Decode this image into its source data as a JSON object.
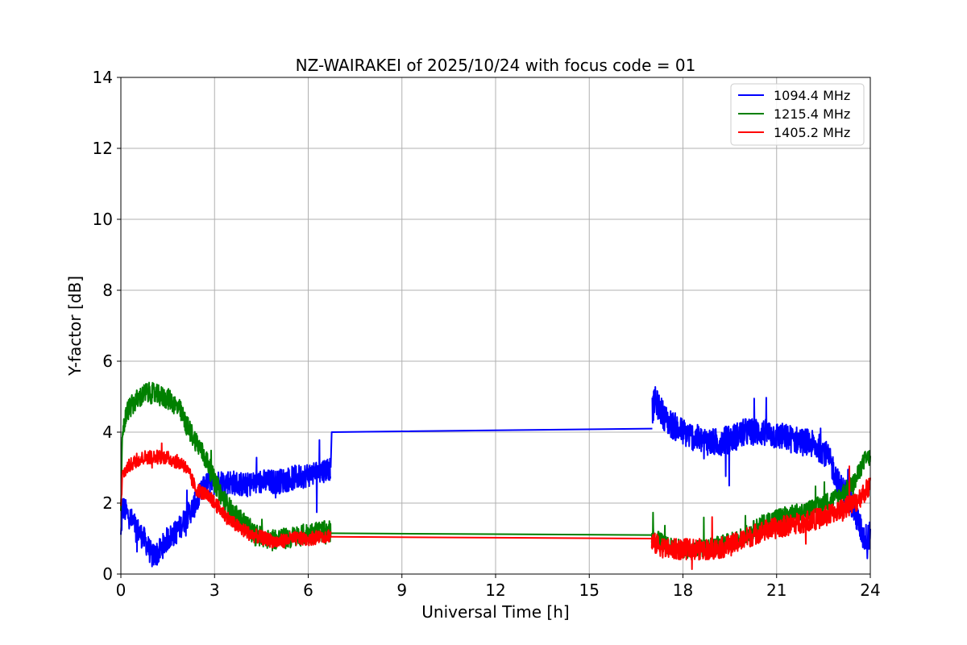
{
  "chart_data": {
    "type": "line",
    "title": "NZ-WAIRAKEI of 2025/10/24 with focus code = 01",
    "xlabel": "Universal Time [h]",
    "ylabel": "Y-factor [dB]",
    "xlim": [
      0,
      24
    ],
    "ylim": [
      0,
      14
    ],
    "xticks": [
      "0",
      "3",
      "6",
      "9",
      "12",
      "15",
      "18",
      "21",
      "24"
    ],
    "yticks": [
      "0",
      "2",
      "4",
      "6",
      "8",
      "10",
      "12",
      "14"
    ],
    "grid": true,
    "legend_position": "top-right",
    "series": [
      {
        "name": "1094.4 MHz",
        "color": "#0000ff",
        "segments": [
          {
            "x": [
              0.0,
              0.05,
              0.2,
              0.5,
              0.8,
              1.0,
              1.2,
              1.5,
              1.8,
              2.1,
              2.4,
              2.7,
              3.0,
              3.5,
              4.0,
              4.5,
              5.0,
              5.5,
              6.0,
              6.4,
              6.72
            ],
            "y": [
              1.0,
              1.9,
              1.7,
              1.3,
              0.9,
              0.5,
              0.6,
              1.0,
              1.2,
              1.6,
              2.0,
              2.5,
              2.6,
              2.6,
              2.5,
              2.6,
              2.6,
              2.7,
              2.8,
              2.9,
              3.0
            ],
            "noise": 0.35
          },
          {
            "x": [
              6.72,
              6.75,
              17.0,
              17.02
            ],
            "y": [
              3.0,
              4.0,
              4.1,
              4.1
            ],
            "noise": 0
          },
          {
            "x": [
              17.02,
              17.1,
              17.5,
              18.0,
              18.5,
              19.0,
              19.5,
              20.0,
              20.5,
              21.0,
              21.5,
              22.0,
              22.5,
              22.8,
              23.0,
              23.3,
              23.6,
              23.8,
              24.0
            ],
            "y": [
              4.6,
              4.9,
              4.3,
              4.0,
              3.8,
              3.7,
              3.8,
              4.0,
              4.0,
              3.9,
              3.8,
              3.7,
              3.5,
              3.0,
              2.5,
              2.2,
              1.5,
              1.0,
              1.1
            ],
            "noise": 0.4
          }
        ]
      },
      {
        "name": "1215.4 MHz",
        "color": "#008000",
        "segments": [
          {
            "x": [
              0.0,
              0.05,
              0.2,
              0.5,
              0.8,
              1.0,
              1.3,
              1.6,
              1.9,
              2.1,
              2.3,
              2.5,
              2.8,
              3.0,
              3.3,
              3.6,
              4.0,
              4.3,
              4.8,
              5.3,
              5.8,
              6.3,
              6.72
            ],
            "y": [
              1.5,
              4.0,
              4.6,
              4.9,
              5.1,
              5.1,
              5.0,
              4.9,
              4.6,
              4.2,
              3.9,
              3.6,
              3.1,
              2.6,
              2.1,
              1.7,
              1.4,
              1.1,
              1.0,
              1.0,
              1.1,
              1.2,
              1.2
            ],
            "noise": 0.3
          },
          {
            "x": [
              6.72,
              17.0
            ],
            "y": [
              1.15,
              1.1
            ],
            "noise": 0
          },
          {
            "x": [
              17.0,
              17.5,
              18.0,
              18.5,
              19.0,
              19.5,
              20.0,
              20.5,
              21.0,
              21.5,
              22.0,
              22.5,
              23.0,
              23.5,
              23.8,
              24.0
            ],
            "y": [
              1.1,
              0.8,
              0.7,
              0.7,
              0.8,
              0.9,
              1.1,
              1.4,
              1.6,
              1.7,
              1.8,
              2.0,
              2.2,
              2.6,
              3.2,
              3.3
            ],
            "noise": 0.25
          }
        ]
      },
      {
        "name": "1405.2 MHz",
        "color": "#ff0000",
        "segments": [
          {
            "x": [
              0.0,
              0.05,
              0.2,
              0.5,
              0.8,
              1.1,
              1.4,
              1.7,
              2.0,
              2.2,
              2.4,
              2.6,
              2.9,
              3.2,
              3.5,
              3.8,
              4.2,
              4.6,
              5.0,
              5.5,
              6.0,
              6.72
            ],
            "y": [
              1.8,
              2.8,
              3.0,
              3.2,
              3.3,
              3.3,
              3.3,
              3.2,
              3.1,
              2.8,
              2.4,
              2.3,
              2.1,
              1.8,
              1.5,
              1.3,
              1.1,
              1.0,
              0.9,
              1.0,
              1.0,
              1.1
            ],
            "noise": 0.2
          },
          {
            "x": [
              6.72,
              17.0
            ],
            "y": [
              1.05,
              1.0
            ],
            "noise": 0
          },
          {
            "x": [
              17.0,
              17.5,
              18.0,
              18.5,
              19.0,
              19.5,
              20.0,
              20.5,
              21.0,
              21.5,
              22.0,
              22.5,
              23.0,
              23.5,
              23.8,
              24.0
            ],
            "y": [
              0.9,
              0.7,
              0.7,
              0.7,
              0.7,
              0.8,
              1.0,
              1.2,
              1.3,
              1.4,
              1.5,
              1.6,
              1.8,
              2.0,
              2.3,
              2.5
            ],
            "noise": 0.3
          }
        ]
      }
    ]
  }
}
